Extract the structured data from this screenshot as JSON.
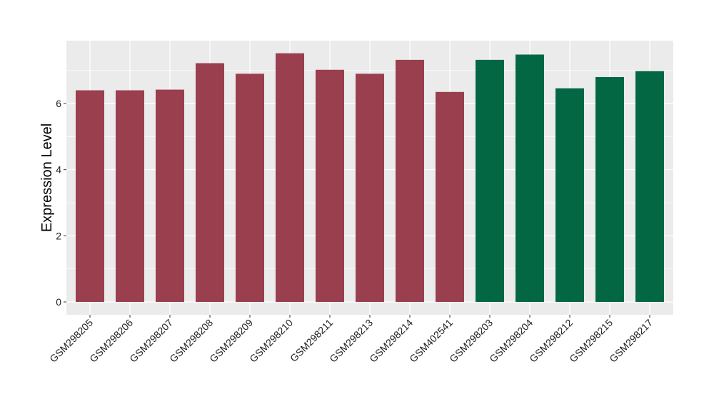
{
  "chart_data": {
    "type": "bar",
    "title": "",
    "xlabel": "",
    "ylabel": "Expression Level",
    "ylim": [
      0,
      7.9
    ],
    "y_ticks": [
      0,
      2,
      4,
      6
    ],
    "grid": true,
    "legend": "none",
    "categories": [
      "GSM298205",
      "GSM298206",
      "GSM298207",
      "GSM298208",
      "GSM298209",
      "GSM298210",
      "GSM298211",
      "GSM298213",
      "GSM298214",
      "GSM402541",
      "GSM298203",
      "GSM298204",
      "GSM298212",
      "GSM298215",
      "GSM298217"
    ],
    "values": [
      6.4,
      6.4,
      6.42,
      7.22,
      6.9,
      7.52,
      7.02,
      6.9,
      7.32,
      6.35,
      7.32,
      7.48,
      6.46,
      6.8,
      6.98
    ],
    "groups": [
      0,
      0,
      0,
      0,
      0,
      0,
      0,
      0,
      0,
      0,
      1,
      1,
      1,
      1,
      1
    ],
    "group_colors": [
      "#9a3f4e",
      "#036744"
    ],
    "panel_color": "#ebebeb",
    "grid_color": "#ffffff"
  }
}
